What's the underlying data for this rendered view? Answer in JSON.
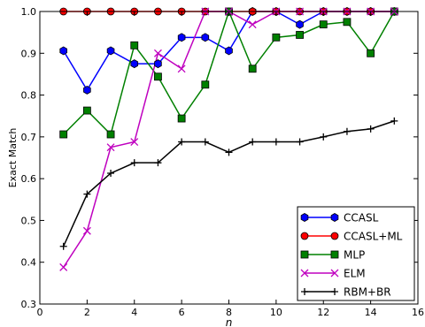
{
  "chart_data": {
    "type": "line",
    "title": "",
    "xlabel": "n",
    "ylabel": "Exact Match",
    "xlim": [
      0,
      16
    ],
    "ylim": [
      0.3,
      1.0
    ],
    "xticks": [
      0,
      2,
      4,
      6,
      8,
      10,
      12,
      14,
      16
    ],
    "yticks": [
      0.3,
      0.4,
      0.5,
      0.6,
      0.7,
      0.8,
      0.9,
      1.0
    ],
    "xtick_labels": [
      "0",
      "2",
      "4",
      "6",
      "8",
      "10",
      "12",
      "14",
      "16"
    ],
    "ytick_labels": [
      "0.3",
      "0.4",
      "0.5",
      "0.6",
      "0.7",
      "0.8",
      "0.9",
      "1.0"
    ],
    "grid": false,
    "legend_position": "bottom-right",
    "x": [
      1,
      2,
      3,
      4,
      5,
      6,
      7,
      8,
      9,
      10,
      11,
      12,
      13,
      14,
      15
    ],
    "series": [
      {
        "name": "CCASL",
        "color": "#0000ff",
        "marker": "hexagon",
        "values": [
          0.906,
          0.812,
          0.906,
          0.875,
          0.875,
          0.938,
          0.938,
          0.906,
          1.0,
          1.0,
          0.969,
          1.0,
          1.0,
          1.0,
          1.0
        ]
      },
      {
        "name": "CCASL+ML",
        "color": "#ff0000",
        "marker": "circle",
        "values": [
          1.0,
          1.0,
          1.0,
          1.0,
          1.0,
          1.0,
          1.0,
          1.0,
          1.0,
          1.0,
          1.0,
          1.0,
          1.0,
          1.0,
          1.0
        ]
      },
      {
        "name": "MLP",
        "color": "#008000",
        "marker": "square",
        "values": [
          0.706,
          0.763,
          0.706,
          0.919,
          0.844,
          0.744,
          0.825,
          1.0,
          0.863,
          0.938,
          0.944,
          0.969,
          0.975,
          0.9,
          1.0
        ]
      },
      {
        "name": "ELM",
        "color": "#bf00bf",
        "marker": "x",
        "values": [
          0.388,
          0.475,
          0.675,
          0.688,
          0.9,
          0.863,
          1.0,
          1.0,
          0.969,
          1.0,
          1.0,
          1.0,
          1.0,
          1.0,
          1.0
        ]
      },
      {
        "name": "RBM+BR",
        "color": "#000000",
        "marker": "plus",
        "values": [
          0.438,
          0.563,
          0.613,
          0.638,
          0.638,
          0.688,
          0.688,
          0.663,
          0.688,
          0.688,
          0.688,
          0.7,
          0.713,
          0.719,
          0.738
        ]
      }
    ]
  }
}
